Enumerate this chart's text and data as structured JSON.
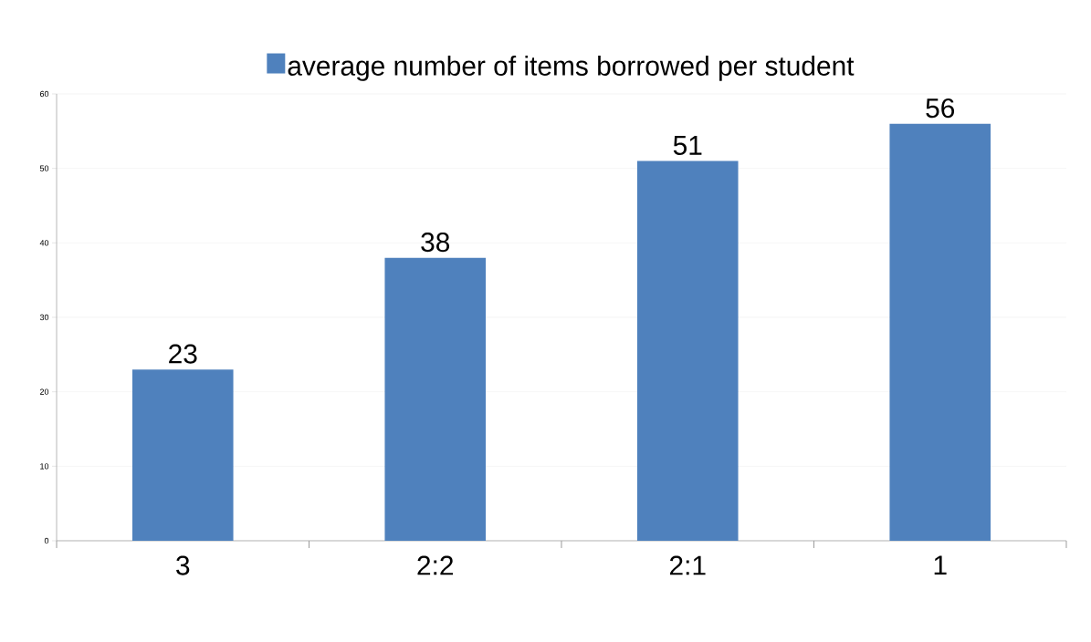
{
  "chart_data": {
    "type": "bar",
    "categories": [
      "3",
      "2:2",
      "2:1",
      "1"
    ],
    "series": [
      {
        "name": "average number of items borrowed per student",
        "color": "#4f81bd",
        "values": [
          23,
          38,
          51,
          56
        ]
      }
    ],
    "ylim": [
      0,
      60
    ],
    "yticks": [
      0,
      10,
      20,
      30,
      40,
      50,
      60
    ],
    "grid": "y",
    "legend": "top",
    "data_labels": true
  }
}
